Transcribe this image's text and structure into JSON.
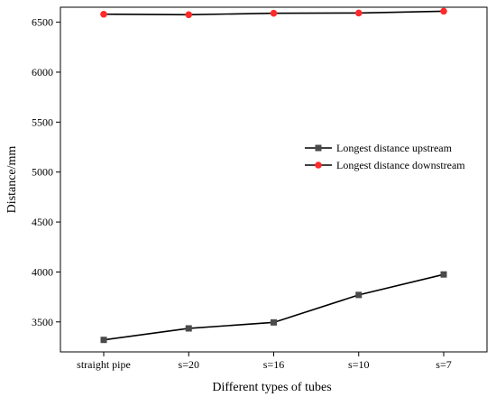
{
  "chart_data": {
    "type": "line",
    "title": "",
    "xlabel": "Different types of tubes",
    "ylabel": "Distance/mm",
    "categories": [
      "straight pipe",
      "s=20",
      "s=16",
      "s=10",
      "s=7"
    ],
    "ylim": [
      3200,
      6650
    ],
    "yticks": [
      3500,
      4000,
      4500,
      5000,
      5500,
      6000,
      6500
    ],
    "grid": false,
    "legend_position": "right",
    "series": [
      {
        "name": "Longest distance upstream",
        "values": [
          3320,
          3435,
          3495,
          3770,
          3975
        ],
        "marker": "square",
        "marker_color": "#4a4a4a",
        "line_color": "#000000"
      },
      {
        "name": "Longest distance downstream",
        "values": [
          6580,
          6575,
          6590,
          6592,
          6610
        ],
        "marker": "circle",
        "marker_color": "#ff2a2a",
        "line_color": "#000000"
      }
    ]
  }
}
